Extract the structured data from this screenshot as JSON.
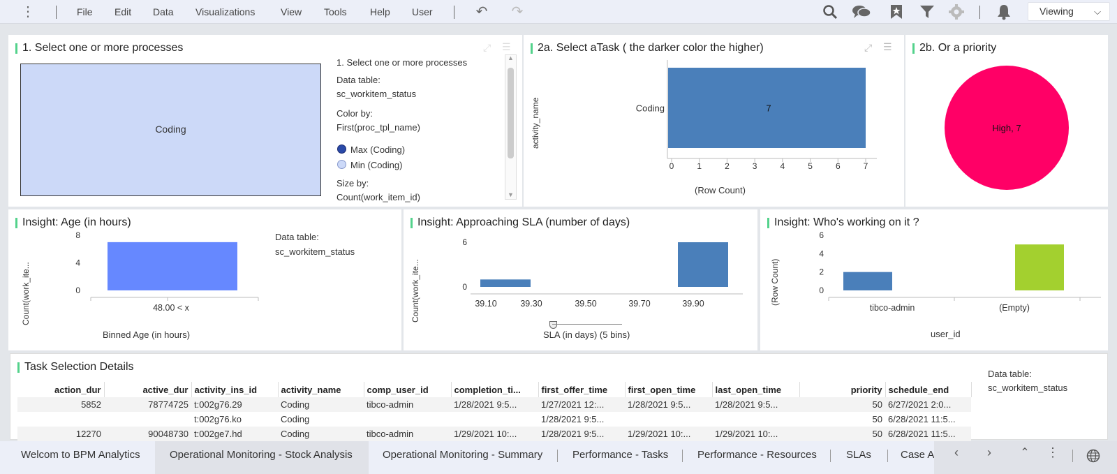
{
  "menu": {
    "items": [
      "File",
      "Edit",
      "Data",
      "Visualizations",
      "View",
      "Tools",
      "Help",
      "User"
    ],
    "mode": "Viewing"
  },
  "panels": {
    "treemap": {
      "title": "1. Select one or more processes",
      "tile_label": "Coding",
      "legend": {
        "heading": "1. Select one or more processes",
        "data_table_label": "Data table:",
        "data_table": "sc_workitem_status",
        "color_by_label": "Color by:",
        "color_by": "First(proc_tpl_name)",
        "max_label": "Max (Coding)",
        "min_label": "Min (Coding)",
        "size_by_label": "Size by:",
        "size_by": "Count(work_item_id)"
      },
      "colors": {
        "tile": "#ccd9f8",
        "max": "#2a4aa8",
        "min": "#ccd9f8"
      }
    },
    "task": {
      "title": "2a. Select aTask ( the darker color the higher)",
      "ylabel": "activity_name",
      "xlabel": "(Row Count)"
    },
    "priority": {
      "title": "2b. Or a priority",
      "slice_label": "High, 7"
    },
    "age": {
      "title": "Insight: Age (in hours)",
      "ylabel": "Count(work_ite...",
      "xlabel": "Binned Age (in hours)",
      "data_table_label": "Data table:",
      "data_table": "sc_workitem_status"
    },
    "sla": {
      "title": "Insight: Approaching SLA (number of days)",
      "ylabel": "Count(work_ite...",
      "xlabel": "SLA (in days) (5 bins)"
    },
    "who": {
      "title": "Insight: Who's working on it ?",
      "ylabel": "(Row Count)",
      "xlabel": "user_id"
    },
    "details": {
      "title": "Task Selection Details",
      "data_table_label": "Data table:",
      "data_table": "sc_workitem_status",
      "columns": [
        "action_dur",
        "active_dur",
        "activity_ins_id",
        "activity_name",
        "comp_user_id",
        "completion_ti...",
        "first_offer_time",
        "first_open_time",
        "last_open_time",
        "priority",
        "schedule_end"
      ],
      "rows": [
        [
          "5852",
          "78774725",
          "t:002g76.29",
          "Coding",
          "tibco-admin",
          "1/28/2021 9:5...",
          "1/27/2021 12:...",
          "1/28/2021 9:5...",
          "1/28/2021 9:5...",
          "50",
          "6/27/2021 2:0..."
        ],
        [
          "",
          "",
          "t:002g76.ko",
          "Coding",
          "",
          "",
          "1/28/2021 9:5...",
          "",
          "",
          "50",
          "6/28/2021 11:5..."
        ],
        [
          "12270",
          "90048730",
          "t:002ge7.hd",
          "Coding",
          "tibco-admin",
          "1/29/2021 10:...",
          "1/28/2021 9:5...",
          "1/29/2021 10:...",
          "1/29/2021 10:...",
          "50",
          "6/28/2021 11:5..."
        ]
      ]
    }
  },
  "tabs": [
    "Welcom to BPM Analytics",
    "Operational Monitoring - Stock Analysis",
    "Operational Monitoring - Summary",
    "Performance - Tasks",
    "Performance - Resources",
    "SLAs",
    "Case A"
  ],
  "chart_data": [
    {
      "type": "bar",
      "orientation": "horizontal",
      "title": "2a. Select aTask ( the darker color the higher)",
      "categories": [
        "Coding"
      ],
      "values": [
        7
      ],
      "xlabel": "(Row Count)",
      "ylabel": "activity_name",
      "xticks": [
        "0",
        "1",
        "2",
        "3",
        "4",
        "5",
        "6",
        "7"
      ],
      "xlim": [
        0,
        7
      ],
      "data_labels": [
        "7"
      ],
      "color": "#4a7fba"
    },
    {
      "type": "pie",
      "title": "2b. Or a priority",
      "categories": [
        "High"
      ],
      "values": [
        7
      ],
      "data_labels": [
        "High, 7"
      ],
      "color": "#ff0066"
    },
    {
      "type": "bar",
      "title": "Insight: Age (in hours)",
      "categories": [
        "48.00 < x"
      ],
      "values": [
        7
      ],
      "xlabel": "Binned Age (in hours)",
      "ylabel": "Count(work_ite...",
      "yticks": [
        "0",
        "4",
        "8"
      ],
      "ylim": [
        0,
        8
      ],
      "color": "#6688ff"
    },
    {
      "type": "bar",
      "title": "Insight: Approaching SLA (number of days)",
      "categories": [
        "39.10",
        "39.30",
        "39.50",
        "39.70",
        "39.90"
      ],
      "values": [
        1,
        0,
        0,
        0,
        6
      ],
      "xlabel": "SLA (in days) (5 bins)",
      "ylabel": "Count(work_ite...",
      "yticks": [
        "0",
        "6"
      ],
      "ylim": [
        0,
        6
      ],
      "color": "#4a7fba"
    },
    {
      "type": "bar",
      "title": "Insight: Who's working on it ?",
      "categories": [
        "tibco-admin",
        "(Empty)"
      ],
      "values": [
        2,
        5
      ],
      "xlabel": "user_id",
      "ylabel": "(Row Count)",
      "yticks": [
        "0",
        "2",
        "4",
        "6"
      ],
      "ylim": [
        0,
        6
      ],
      "colors": [
        "#4a7fba",
        "#a3d02f"
      ]
    }
  ]
}
